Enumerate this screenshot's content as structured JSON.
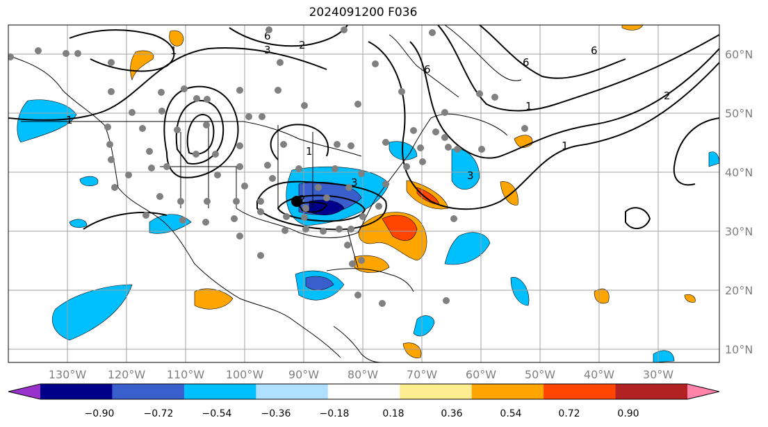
{
  "title": "2024091200 F036",
  "lon_labels": [
    "130°W",
    "120°W",
    "110°W",
    "100°W",
    "90°W",
    "80°W",
    "70°W",
    "60°W",
    "50°W",
    "40°W",
    "30°W"
  ],
  "lat_labels": [
    "60°N",
    "50°N",
    "40°N",
    "30°N",
    "20°N",
    "10°N"
  ],
  "contour_labels": [
    "1",
    "2",
    "3",
    "6"
  ],
  "colorbar": {
    "ticks": [
      "−0.90",
      "−0.72",
      "−0.54",
      "−0.36",
      "−0.18",
      "0.18",
      "0.36",
      "0.54",
      "0.72",
      "0.90"
    ],
    "colors": [
      "#9932cc",
      "#00008b",
      "#3a5fcd",
      "#00bfff",
      "#b0e0ff",
      "#ffffff",
      "#ffee90",
      "#ffa500",
      "#ff4500",
      "#b22222",
      "#ff82ab"
    ]
  }
}
